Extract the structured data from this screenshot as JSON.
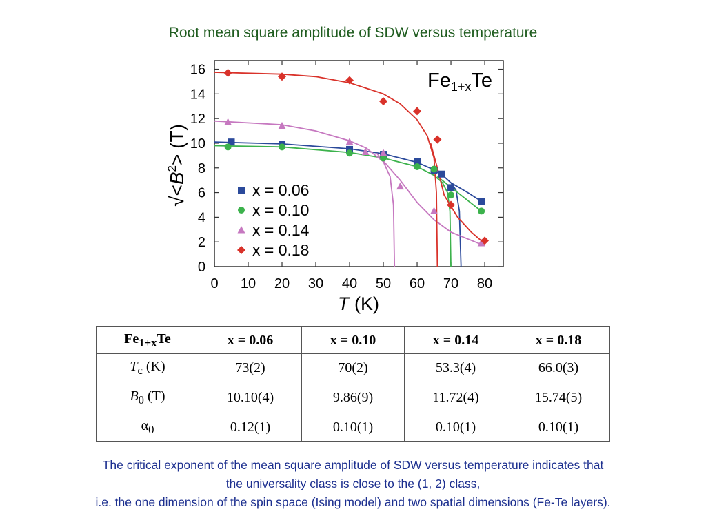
{
  "title": "Root mean square amplitude of SDW versus temperature",
  "chart_data": {
    "type": "scatter",
    "annotation": [
      "Fe",
      "1+x",
      "Te"
    ],
    "ylabel": [
      "√<",
      "B",
      "2",
      "> (T)"
    ],
    "xlabel": [
      "T",
      " (K)"
    ],
    "xlim": [
      0,
      85.5
    ],
    "ylim": [
      0,
      16.7
    ],
    "xticks": [
      0,
      10,
      20,
      30,
      40,
      50,
      60,
      70,
      80
    ],
    "yticks": [
      0,
      2,
      4,
      6,
      8,
      10,
      12,
      14,
      16
    ],
    "legend": "center-left",
    "series": [
      {
        "name": "x = 0.06",
        "color": "#2b4a9b",
        "marker": "square",
        "x": [
          5,
          20,
          40,
          50,
          60,
          65,
          67.3,
          70,
          79
        ],
        "values": [
          10.1,
          9.9,
          9.5,
          9.1,
          8.5,
          7.8,
          7.5,
          6.4,
          5.3
        ]
      },
      {
        "name": "x = 0.10",
        "color": "#3cb24c",
        "marker": "circle",
        "x": [
          4,
          20,
          40,
          50,
          60,
          65,
          70,
          79
        ],
        "values": [
          9.7,
          9.7,
          9.2,
          8.8,
          8.1,
          7.9,
          5.8,
          4.5
        ]
      },
      {
        "name": "x = 0.14",
        "color": "#c678c0",
        "marker": "triangle",
        "x": [
          4,
          20,
          40,
          44.7,
          50,
          55,
          65,
          79
        ],
        "values": [
          11.7,
          11.4,
          10.1,
          9.3,
          9.2,
          6.5,
          4.5,
          1.9
        ]
      },
      {
        "name": "x = 0.18",
        "color": "#d9322a",
        "marker": "diamond",
        "x": [
          4,
          20,
          40,
          50,
          60,
          66,
          70,
          80
        ],
        "values": [
          15.7,
          15.4,
          15.1,
          13.4,
          12.6,
          10.3,
          5.0,
          2.1
        ]
      }
    ],
    "fits": [
      {
        "color": "#2b4a9b",
        "x": [
          0,
          20,
          40,
          50,
          60,
          65,
          68,
          70,
          71.5,
          72.5,
          73,
          73,
          70,
          75,
          79
        ],
        "values": [
          10.1,
          9.95,
          9.55,
          9.15,
          8.45,
          7.85,
          7.3,
          6.8,
          6.2,
          4.5,
          0,
          null,
          6.8,
          6.0,
          5.3
        ]
      },
      {
        "color": "#3cb24c",
        "x": [
          0,
          20,
          40,
          50,
          60,
          65,
          67.5,
          69,
          69.7,
          70,
          70,
          66,
          72,
          79
        ],
        "values": [
          9.8,
          9.7,
          9.25,
          8.8,
          8.1,
          7.4,
          6.8,
          6.0,
          4.5,
          0,
          null,
          7.3,
          6.0,
          4.5
        ]
      },
      {
        "color": "#c678c0",
        "x": [
          0,
          20,
          30,
          40,
          45,
          50,
          52,
          53,
          53.3,
          53.3,
          48,
          55,
          60,
          65,
          70,
          79
        ],
        "values": [
          11.8,
          11.5,
          11.0,
          10.2,
          9.6,
          8.5,
          7.3,
          5.0,
          0,
          null,
          9.2,
          7.0,
          5.2,
          3.8,
          2.8,
          1.8
        ]
      },
      {
        "color": "#d9322a",
        "x": [
          0,
          20,
          30,
          40,
          50,
          55,
          60,
          63,
          65,
          65.7,
          66,
          66,
          64,
          66,
          68,
          72,
          76,
          79
        ],
        "values": [
          15.75,
          15.6,
          15.4,
          14.9,
          14.0,
          13.2,
          11.9,
          10.6,
          8.8,
          6.0,
          0,
          null,
          10.0,
          8.0,
          5.8,
          4.0,
          2.8,
          2.1
        ]
      }
    ]
  },
  "table": {
    "header": [
      [
        "Fe",
        "1+x",
        "Te"
      ],
      "x = 0.06",
      "x = 0.10",
      "x = 0.14",
      "x = 0.18"
    ],
    "rows": [
      [
        [
          "T",
          "c",
          " (K)"
        ],
        "73(2)",
        "70(2)",
        "53.3(4)",
        "66.0(3)"
      ],
      [
        [
          "B",
          "0",
          " (T)"
        ],
        "10.10(4)",
        "9.86(9)",
        "11.72(4)",
        "15.74(5)"
      ],
      [
        [
          "α",
          "0"
        ],
        "0.12(1)",
        "0.10(1)",
        "0.10(1)",
        "0.10(1)"
      ]
    ]
  },
  "caption": [
    "The critical exponent of the mean square amplitude of SDW versus temperature indicates that",
    "the universality class is close to the (1, 2) class,",
    "i.e. the one dimension of the spin space (Ising model) and two spatial dimensions (Fe-Te layers)."
  ]
}
